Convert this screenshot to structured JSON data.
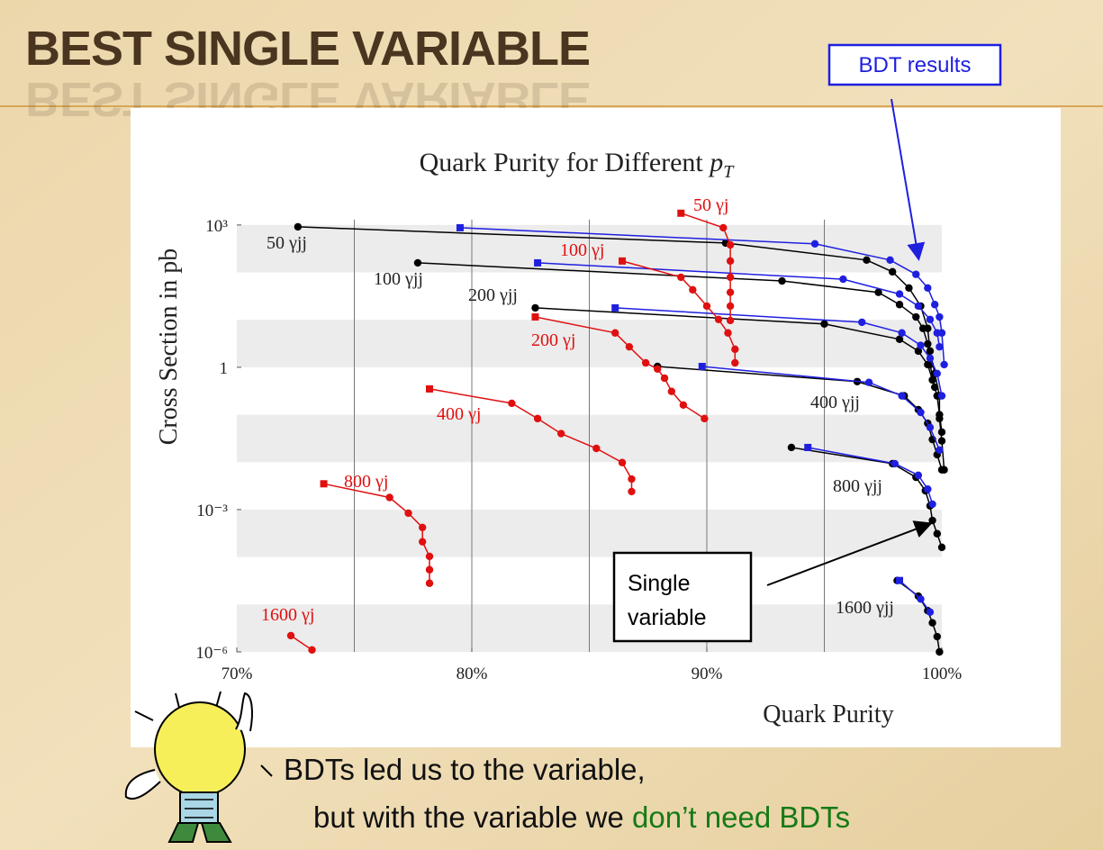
{
  "slide": {
    "title": "BEST SINGLE VARIABLE",
    "callout_bdt": "BDT results",
    "callout_single_line1": "Single",
    "callout_single_line2": "variable",
    "footer_line1": "BDTs led us to the variable,",
    "footer_line2": "but with the variable we",
    "footer_line2_highlight": "don’t need BDTs"
  },
  "chart_data": {
    "type": "line",
    "title": "Quark Purity for Different",
    "title_var": "p",
    "title_sub": "T",
    "x_label": "Quark Purity",
    "y_label": "Cross Section in pb",
    "xlim": [
      70,
      100
    ],
    "xticks": [
      {
        "value": 70,
        "label": "70%"
      },
      {
        "value": 80,
        "label": "80%"
      },
      {
        "value": 90,
        "label": "90%"
      },
      {
        "value": 100,
        "label": "100%"
      }
    ],
    "xgrid": [
      75,
      80,
      85,
      90,
      95
    ],
    "ylim": [
      1e-06,
      2000
    ],
    "ylog": true,
    "bands": true,
    "yticks": [
      {
        "value": 1e-06,
        "label": "10⁻⁶"
      },
      {
        "value": 0.001,
        "label": "10⁻³"
      },
      1,
      {
        "value": 1000,
        "label": "10³"
      }
    ],
    "series": [
      {
        "name": "50 γjj",
        "color": "#000000",
        "x": [
          72.6,
          90.8,
          96.8,
          97.9,
          98.6,
          99.1,
          99.4,
          99.5,
          99.7,
          99.9,
          99.9,
          100.0,
          100.1
        ],
        "values": [
          915,
          417,
          182,
          103,
          47,
          19.5,
          6.6,
          2.2,
          0.74,
          0.25,
          0.083,
          0.028,
          0.0069
        ]
      },
      {
        "color": "#1f1fe0",
        "start_marker": "square",
        "x": [
          79.5,
          94.6,
          97.8,
          98.9,
          99.4,
          99.7,
          99.9,
          100.0,
          100.1
        ],
        "values": [
          875,
          400,
          182,
          91,
          47,
          21,
          11.5,
          5.3,
          1.14
        ]
      },
      {
        "name": "100 γjj",
        "color": "#000000",
        "x": [
          77.7,
          93.2,
          97.3,
          98.2,
          98.9,
          99.2,
          99.4,
          99.5,
          99.7
        ],
        "values": [
          159,
          66,
          38,
          21,
          11.5,
          6.6,
          3.1,
          1.14,
          0.38
        ]
      },
      {
        "color": "#1f1fe0",
        "start_marker": "square",
        "x": [
          82.8,
          95.8,
          98.2,
          99.0,
          99.5,
          99.8,
          99.9
        ],
        "values": [
          159,
          72,
          35,
          19.5,
          10.2,
          5.3,
          2.7
        ]
      },
      {
        "name": "200 γjj",
        "color": "#000000",
        "x": [
          82.7,
          95.0,
          98.2,
          99.0,
          99.4,
          99.6,
          99.8,
          99.9,
          100.0
        ],
        "values": [
          17.9,
          8.2,
          3.9,
          2.2,
          1.14,
          0.54,
          0.25,
          0.1,
          0.043
        ]
      },
      {
        "color": "#1f1fe0",
        "start_marker": "square",
        "x": [
          86.1,
          96.6,
          98.3,
          99.1,
          99.5,
          99.8,
          100.0
        ],
        "values": [
          17.9,
          8.9,
          5.3,
          2.9,
          1.55,
          0.74,
          0.25
        ]
      },
      {
        "name": "400 γjj",
        "color": "#000000",
        "x": [
          87.9,
          96.4,
          98.4,
          99.0,
          99.4,
          99.6,
          99.8,
          100.0
        ],
        "values": [
          1.04,
          0.5,
          0.25,
          0.128,
          0.066,
          0.03,
          0.0144,
          0.0069
        ]
      },
      {
        "color": "#1f1fe0",
        "start_marker": "square",
        "x": [
          89.8,
          96.9,
          98.3,
          99.1,
          99.5,
          99.9
        ],
        "values": [
          1.04,
          0.48,
          0.25,
          0.112,
          0.054,
          0.018
        ]
      },
      {
        "name": "800 γjj",
        "color": "#000000",
        "x": [
          93.6,
          97.9,
          98.9,
          99.3,
          99.5,
          99.6,
          99.8,
          100.0
        ],
        "values": [
          0.0204,
          0.0093,
          0.0048,
          0.0025,
          0.0012,
          0.00059,
          0.00031,
          0.00016
        ]
      },
      {
        "color": "#1f1fe0",
        "start_marker": "square",
        "x": [
          94.3,
          98.0,
          99.0,
          99.4,
          99.6
        ],
        "values": [
          0.0204,
          0.0093,
          0.0053,
          0.0027,
          0.0013
        ]
      },
      {
        "name": "1600 γjj",
        "color": "#000000",
        "x": [
          98.1,
          99.0,
          99.4,
          99.6,
          99.8,
          99.9
        ],
        "values": [
          3.2e-05,
          1.5e-05,
          7.4e-06,
          4.1e-06,
          2.1e-06,
          1e-06
        ]
      },
      {
        "color": "#1f1fe0",
        "start_marker": "square",
        "x": [
          98.2,
          99.1,
          99.5
        ],
        "values": [
          3.2e-05,
          1.3e-05,
          6.9e-06
        ]
      },
      {
        "name": "50 γj",
        "color": "#e01010",
        "start_marker": "square",
        "x": [
          88.9,
          90.7,
          91.0,
          91.0,
          91.0,
          91.0,
          91.0,
          91.0
        ],
        "values": [
          1770,
          875,
          380,
          174,
          79,
          38,
          19.5,
          9.7
        ]
      },
      {
        "name": "100 γj",
        "color": "#e01010",
        "start_marker": "square",
        "x": [
          86.4,
          88.9,
          89.4,
          90.0,
          90.5,
          90.9,
          91.2,
          91.2
        ],
        "values": [
          174,
          79,
          43,
          19.5,
          10.2,
          5.3,
          2.4,
          1.24
        ]
      },
      {
        "name": "200 γj",
        "color": "#e01010",
        "start_marker": "square",
        "x": [
          82.7,
          86.1,
          86.7,
          87.4,
          87.9,
          88.2,
          88.5,
          89.0,
          89.9
        ],
        "values": [
          11.5,
          5.3,
          2.7,
          1.24,
          0.92,
          0.59,
          0.31,
          0.16,
          0.083
        ]
      },
      {
        "name": "400 γj",
        "color": "#e01010",
        "start_marker": "square",
        "x": [
          78.2,
          81.7,
          82.8,
          83.8,
          85.3,
          86.4,
          86.8,
          86.8
        ],
        "values": [
          0.35,
          0.174,
          0.083,
          0.04,
          0.0195,
          0.0098,
          0.0044,
          0.0024
        ]
      },
      {
        "name": "800 γj",
        "color": "#e01010",
        "start_marker": "square",
        "x": [
          73.7,
          76.5,
          77.3,
          77.9,
          77.9,
          78.2,
          78.2,
          78.2
        ],
        "values": [
          0.0035,
          0.0018,
          0.00084,
          0.00042,
          0.00021,
          0.000103,
          5.4e-05,
          2.8e-05
        ]
      },
      {
        "name": "1600 γj",
        "color": "#e01010",
        "x": [
          72.3,
          73.2
        ],
        "values": [
          2.2e-06,
          1.1e-06
        ]
      }
    ]
  }
}
